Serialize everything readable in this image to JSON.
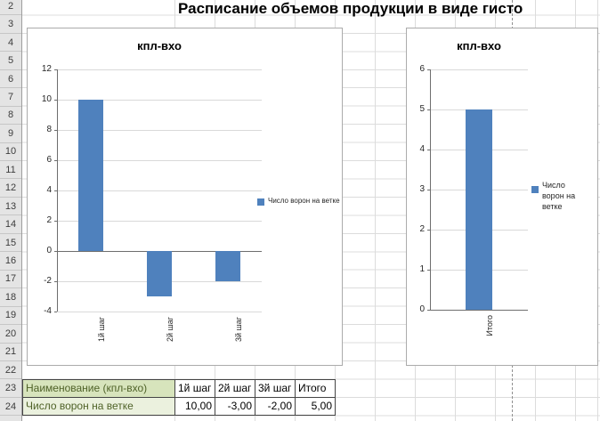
{
  "sheet": {
    "title": "Расписание объемов продукции в виде гисто",
    "row_numbers": [
      2,
      3,
      4,
      5,
      6,
      7,
      8,
      9,
      10,
      11,
      12,
      13,
      14,
      15,
      16,
      17,
      18,
      19,
      20,
      21,
      22,
      23,
      24
    ]
  },
  "chart_data": [
    {
      "type": "bar",
      "title": "кпл-вхо",
      "categories": [
        "1й шаг",
        "2й шаг",
        "3й шаг"
      ],
      "values": [
        10,
        -3,
        -2
      ],
      "series_name": "Число ворон на ветке",
      "y_ticks": [
        12,
        10,
        8,
        6,
        4,
        2,
        0,
        -2,
        -4
      ],
      "ylim": [
        -4,
        12
      ],
      "xlabel": "",
      "ylabel": "",
      "grid": true,
      "legend_position": "right"
    },
    {
      "type": "bar",
      "title": "кпл-вхо",
      "categories": [
        "Итого"
      ],
      "values": [
        5
      ],
      "series_name": "Число ворон на ветке",
      "y_ticks": [
        6,
        5,
        4,
        3,
        2,
        1,
        0
      ],
      "ylim": [
        0,
        6
      ],
      "xlabel": "",
      "ylabel": "",
      "grid": true,
      "legend_position": "right"
    }
  ],
  "table": {
    "headers": [
      "Наименование (кпл-вхо)",
      "1й шаг",
      "2й шаг",
      "3й шаг",
      "Итого"
    ],
    "rows": [
      {
        "label": "Число ворон на ветке",
        "values": [
          "10,00",
          "-3,00",
          "-2,00",
          "5,00"
        ]
      }
    ]
  },
  "colors": {
    "bar_fill": "#4F81BD",
    "chart_border": "#ABABAB",
    "chart_gridline": "#D9D9D9",
    "axis_line": "#6E6E6E",
    "sheet_gridline": "#DCDCDC",
    "header_green_bg": "#D7E4BC",
    "row_green_bg": "#EBF1DE",
    "green_text": "#4F6228",
    "row_header_bg": "#E4E4E4",
    "page_break_dash": "#909090"
  }
}
